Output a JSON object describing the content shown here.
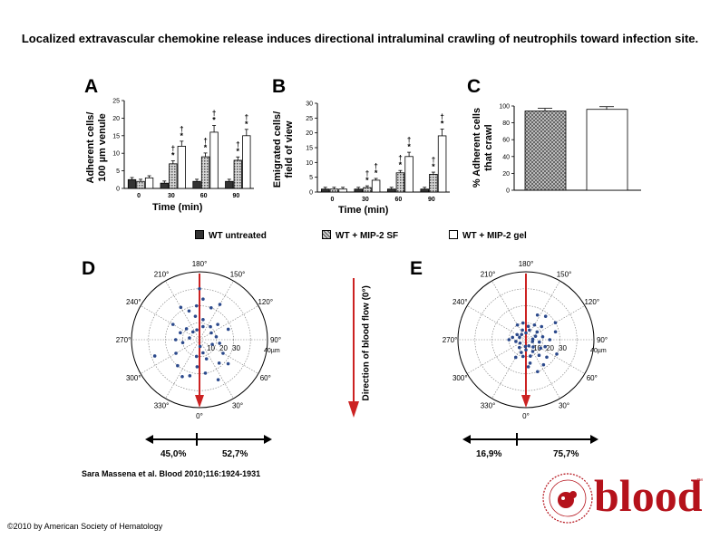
{
  "title": "Localized extravascular chemokine release induces directional intraluminal crawling of neutrophils toward infection site.",
  "colors": {
    "wt_untreated": "#333333",
    "mip2_sf_hatch": "#777777",
    "mip2_gel": "#ffffff",
    "arrow_red": "#cc2222",
    "point_blue": "#2c4a8c",
    "brand_red": "#b5121b"
  },
  "panels": {
    "A": {
      "label": "A",
      "ylabel": "Adherent cells/\n100 µm venule",
      "xlabel": "Time (min)"
    },
    "B": {
      "label": "B",
      "ylabel": "Emigrated cells/\nfield of view",
      "xlabel": "Time (min)"
    },
    "C": {
      "label": "C",
      "ylabel": "% Adherent cells\nthat crawl"
    },
    "D": {
      "label": "D",
      "left_pct": "45,0%",
      "right_pct": "52,7%"
    },
    "E": {
      "label": "E",
      "left_pct": "16,9%",
      "right_pct": "75,7%"
    }
  },
  "legend": [
    {
      "key": "wt",
      "label": "WT untreated"
    },
    {
      "key": "sf",
      "label": "WT + MIP-2 SF"
    },
    {
      "key": "gel",
      "label": "WT + MIP-2 gel"
    }
  ],
  "flow_label": "Direction of blood flow (0°)",
  "polar": {
    "angle_labels": [
      "180°",
      "150°",
      "120°",
      "90°",
      "60°",
      "30°",
      "0°",
      "330°",
      "300°",
      "270°",
      "240°",
      "210°"
    ],
    "radius_labels": [
      "10",
      "20",
      "30"
    ],
    "unit": "40µm"
  },
  "chart_data": [
    {
      "type": "bar",
      "panel": "A",
      "categories": [
        "0",
        "30",
        "60",
        "90"
      ],
      "series": [
        {
          "name": "WT untreated",
          "values": [
            2.5,
            1.5,
            2,
            2
          ]
        },
        {
          "name": "WT + MIP-2 SF",
          "values": [
            2,
            7,
            9,
            8
          ]
        },
        {
          "name": "WT + MIP-2 gel",
          "values": [
            3,
            12,
            16,
            15
          ]
        }
      ],
      "ylim": [
        0,
        25
      ],
      "yticks": [
        0,
        5,
        10,
        15,
        20,
        25
      ],
      "annotations": [
        "†",
        "*"
      ]
    },
    {
      "type": "bar",
      "panel": "B",
      "categories": [
        "0",
        "30",
        "60",
        "90"
      ],
      "series": [
        {
          "name": "WT untreated",
          "values": [
            1,
            1,
            1,
            1
          ]
        },
        {
          "name": "WT + MIP-2 SF",
          "values": [
            1,
            1.5,
            6.5,
            6
          ]
        },
        {
          "name": "WT + MIP-2 gel",
          "values": [
            1,
            4,
            12,
            19
          ]
        }
      ],
      "ylim": [
        0,
        30
      ],
      "yticks": [
        0,
        5,
        10,
        15,
        20,
        25,
        30
      ],
      "annotations": [
        "†",
        "*"
      ]
    },
    {
      "type": "bar",
      "panel": "C",
      "categories": [
        "WT + MIP-2 SF",
        "WT + MIP-2 gel"
      ],
      "values": [
        94,
        96
      ],
      "ylim": [
        0,
        100
      ],
      "yticks": [
        0,
        20,
        40,
        60,
        80,
        100
      ]
    },
    {
      "type": "scatter",
      "panel": "D",
      "points": [
        [
          180,
          30
        ],
        [
          175,
          24
        ],
        [
          185,
          20
        ],
        [
          190,
          14
        ],
        [
          170,
          12
        ],
        [
          200,
          18
        ],
        [
          210,
          22
        ],
        [
          160,
          20
        ],
        [
          150,
          24
        ],
        [
          165,
          8
        ],
        [
          195,
          6
        ],
        [
          230,
          10
        ],
        [
          250,
          12
        ],
        [
          140,
          10
        ],
        [
          120,
          8
        ],
        [
          100,
          10
        ],
        [
          80,
          12
        ],
        [
          60,
          16
        ],
        [
          40,
          18
        ],
        [
          20,
          12
        ],
        [
          10,
          20
        ],
        [
          355,
          16
        ],
        [
          345,
          22
        ],
        [
          335,
          24
        ],
        [
          320,
          20
        ],
        [
          300,
          16
        ],
        [
          280,
          10
        ],
        [
          260,
          6
        ],
        [
          240,
          18
        ],
        [
          130,
          14
        ],
        [
          110,
          18
        ],
        [
          70,
          8
        ],
        [
          50,
          22
        ],
        [
          25,
          26
        ],
        [
          15,
          8
        ],
        [
          350,
          10
        ],
        [
          5,
          4
        ],
        [
          220,
          6
        ],
        [
          270,
          14
        ],
        [
          290,
          28
        ]
      ]
    },
    {
      "type": "scatter",
      "panel": "E",
      "points": [
        [
          170,
          8
        ],
        [
          150,
          10
        ],
        [
          130,
          12
        ],
        [
          120,
          20
        ],
        [
          140,
          18
        ],
        [
          110,
          6
        ],
        [
          100,
          10
        ],
        [
          90,
          14
        ],
        [
          80,
          8
        ],
        [
          70,
          12
        ],
        [
          60,
          10
        ],
        [
          50,
          16
        ],
        [
          40,
          12
        ],
        [
          30,
          8
        ],
        [
          20,
          20
        ],
        [
          10,
          14
        ],
        [
          0,
          6
        ],
        [
          350,
          10
        ],
        [
          340,
          8
        ],
        [
          320,
          6
        ],
        [
          300,
          4
        ],
        [
          280,
          6
        ],
        [
          260,
          8
        ],
        [
          250,
          4
        ],
        [
          240,
          6
        ],
        [
          220,
          4
        ],
        [
          200,
          6
        ],
        [
          190,
          10
        ],
        [
          180,
          4
        ],
        [
          160,
          6
        ],
        [
          155,
          16
        ],
        [
          125,
          8
        ],
        [
          105,
          18
        ],
        [
          95,
          4
        ],
        [
          75,
          4
        ],
        [
          65,
          20
        ],
        [
          45,
          6
        ],
        [
          35,
          18
        ],
        [
          25,
          4
        ],
        [
          15,
          10
        ],
        [
          5,
          16
        ],
        [
          355,
          4
        ],
        [
          330,
          12
        ],
        [
          270,
          10
        ],
        [
          210,
          10
        ]
      ]
    }
  ],
  "citation": "Sara Massena et al. Blood 2010;116:1924-1931",
  "copyright": "©2010 by American Society of Hematology",
  "brand": {
    "logo_text": "blood",
    "tm": "™"
  }
}
